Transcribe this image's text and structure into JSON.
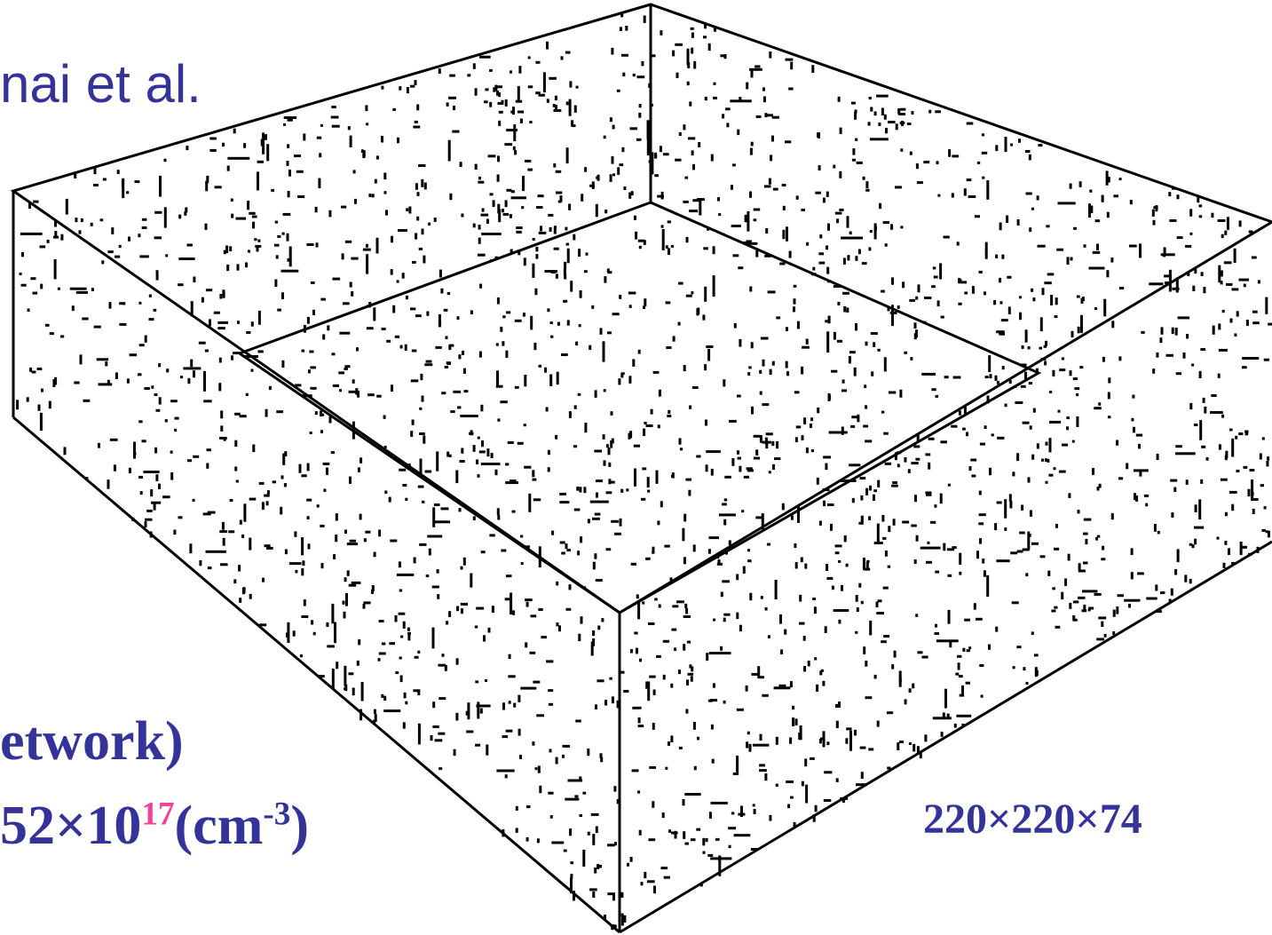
{
  "author_line": "nai et al.",
  "caption": {
    "line1": "etwork)",
    "density_base": "52×10",
    "density_exponent": "17",
    "density_unit": "(cm",
    "density_unit_exponent": "-3",
    "density_close": ")"
  },
  "grid_size": "220×220×74"
}
